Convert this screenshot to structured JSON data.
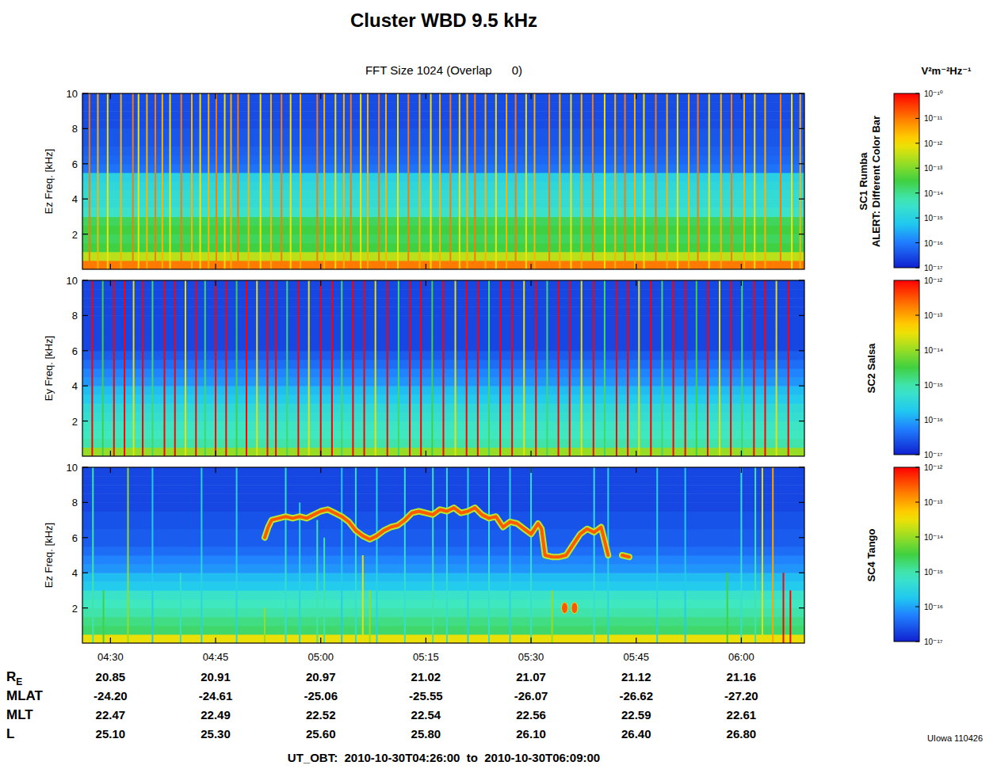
{
  "title": "Cluster WBD 9.5 kHz",
  "subtitle": "FFT Size 1024 (Overlap      0)",
  "colorbar_unit": "V²m⁻²Hz⁻¹",
  "chart_data": [
    {
      "type": "heatmap",
      "name": "SC1 Rumba",
      "alert": "ALERT: Different Color Bar",
      "ylabel": "Ez Freq. [kHz]",
      "xlim": [
        266,
        369
      ],
      "xticks": [
        {
          "value": 270,
          "label": "04:30"
        },
        {
          "value": 285,
          "label": "04:45"
        },
        {
          "value": 300,
          "label": "05:00"
        },
        {
          "value": 315,
          "label": "05:15"
        },
        {
          "value": 330,
          "label": "05:30"
        },
        {
          "value": 345,
          "label": "05:45"
        },
        {
          "value": 360,
          "label": "06:00"
        }
      ],
      "ylim": [
        0,
        10
      ],
      "yticks": [
        2,
        4,
        6,
        8,
        10
      ],
      "tick_labels": "y",
      "log": true,
      "colorbar": {
        "range": [
          1e-17,
          1e-10
        ],
        "ticks": [
          {
            "value": 1e-10,
            "label": "10⁻¹⁰"
          },
          {
            "value": 1e-11,
            "label": "10⁻¹¹"
          },
          {
            "value": 1e-12,
            "label": "10⁻¹²"
          },
          {
            "value": 1e-13,
            "label": "10⁻¹³"
          },
          {
            "value": 1e-14,
            "label": "10⁻¹⁴"
          },
          {
            "value": 1e-15,
            "label": "10⁻¹⁵"
          },
          {
            "value": 1e-16,
            "label": "10⁻¹⁶"
          },
          {
            "value": 1e-17,
            "label": "10⁻¹⁷"
          }
        ]
      },
      "background": {
        "y_bins": [
          0,
          0.5,
          1,
          1.5,
          2,
          2.5,
          3,
          3.5,
          4,
          4.5,
          5,
          5.5,
          6,
          6.5,
          7,
          7.5,
          8,
          8.5,
          9,
          9.5,
          10
        ],
        "values": [
          1e-11,
          3e-13,
          3e-14,
          2e-14,
          3e-14,
          2e-14,
          3e-15,
          2e-15,
          2e-15,
          1.5e-15,
          1e-15,
          8e-17,
          6e-17,
          5e-17,
          4e-17,
          4e-17,
          3e-17,
          3e-17,
          3e-17,
          3e-17
        ]
      },
      "spikes": {
        "x": [
          267.0,
          268.2,
          269.6,
          271.5,
          273.2,
          274.0,
          275.2,
          276.4,
          277.4,
          278.5,
          280.1,
          281.6,
          282.8,
          284.0,
          285.1,
          286.3,
          287.2,
          288.2,
          289.7,
          291.4,
          292.9,
          294.4,
          295.7,
          297.1,
          299.5,
          300.5,
          302.1,
          303.3,
          304.3,
          305.7,
          306.7,
          308.3,
          309.3,
          311.0,
          312.5,
          314.1,
          315.7,
          317.0,
          318.5,
          319.8,
          320.9,
          322.0,
          323.5,
          325.0,
          326.5,
          327.8,
          329.3,
          330.5,
          332.6,
          334.1,
          335.7,
          337.2,
          338.8,
          340.5,
          342.0,
          343.4,
          344.8,
          346.1,
          347.8,
          349.4,
          350.9,
          352.5,
          353.8,
          355.4,
          357.1,
          358.6,
          360.4,
          361.9,
          363.4,
          365.6,
          367.2,
          368.4
        ],
        "values": [
          1e-11,
          3e-12,
          1e-12,
          3e-12,
          1e-11,
          1e-12,
          3e-12,
          1e-11,
          3e-12,
          1e-12,
          1e-11,
          3e-12,
          1e-12,
          3e-12,
          1e-11,
          1e-12,
          3e-12,
          1e-11,
          3e-12,
          1e-12,
          3e-12,
          1e-11,
          1e-12,
          3e-12,
          1e-11,
          3e-12,
          1e-12,
          3e-12,
          1e-11,
          1e-12,
          3e-12,
          1e-11,
          3e-12,
          1e-12,
          1e-11,
          3e-12,
          1e-12,
          3e-12,
          1e-11,
          1e-12,
          3e-12,
          1e-11,
          3e-12,
          1e-12,
          3e-12,
          1e-11,
          1e-12,
          3e-12,
          1e-11,
          3e-12,
          1e-12,
          3e-12,
          1e-11,
          1e-12,
          3e-12,
          1e-11,
          3e-12,
          1e-12,
          1e-11,
          3e-12,
          1e-12,
          3e-12,
          1e-11,
          1e-12,
          3e-12,
          1e-11,
          3e-12,
          1e-12,
          3e-12,
          1e-11,
          1e-12,
          3e-12
        ]
      }
    },
    {
      "type": "heatmap",
      "name": "SC2 Salsa",
      "ylabel": "Ey Freq. [kHz]",
      "xlim": [
        266,
        369
      ],
      "xticks": [
        {
          "value": 270,
          "label": "04:30"
        },
        {
          "value": 285,
          "label": "04:45"
        },
        {
          "value": 300,
          "label": "05:00"
        },
        {
          "value": 315,
          "label": "05:15"
        },
        {
          "value": 330,
          "label": "05:30"
        },
        {
          "value": 345,
          "label": "05:45"
        },
        {
          "value": 360,
          "label": "06:00"
        }
      ],
      "ylim": [
        0,
        10
      ],
      "yticks": [
        2,
        4,
        6,
        8,
        10
      ],
      "tick_labels": "y",
      "log": true,
      "colorbar": {
        "range": [
          1e-17,
          1e-12
        ],
        "ticks": [
          {
            "value": 1e-12,
            "label": "10⁻¹²"
          },
          {
            "value": 1e-13,
            "label": "10⁻¹³"
          },
          {
            "value": 1e-14,
            "label": "10⁻¹⁴"
          },
          {
            "value": 1e-15,
            "label": "10⁻¹⁵"
          },
          {
            "value": 1e-16,
            "label": "10⁻¹⁶"
          },
          {
            "value": 1e-17,
            "label": "10⁻¹⁷"
          }
        ]
      },
      "background": {
        "y_bins": [
          0,
          0.5,
          1,
          1.5,
          2,
          2.5,
          3,
          3.5,
          4,
          4.5,
          5,
          5.5,
          6,
          6.5,
          7,
          7.5,
          8,
          8.5,
          9,
          9.5,
          10
        ],
        "values": [
          1e-14,
          1e-15,
          8e-16,
          7e-16,
          5e-16,
          4e-16,
          2e-16,
          1.5e-16,
          8e-17,
          6e-17,
          4e-17,
          3e-17,
          2e-17,
          2e-17,
          2e-17,
          2e-17,
          2e-17,
          2e-17,
          2e-17,
          2e-17
        ]
      },
      "spikes": {
        "x": [
          267.4,
          268.9,
          270.5,
          272.0,
          273.3,
          274.6,
          276.0,
          277.7,
          279.2,
          280.7,
          282.2,
          283.5,
          285.0,
          286.5,
          288.0,
          289.4,
          290.9,
          292.4,
          293.6,
          295.2,
          296.8,
          298.3,
          300.0,
          301.6,
          303.0,
          304.6,
          306.2,
          307.8,
          309.5,
          311.1,
          312.7,
          314.3,
          315.9,
          317.5,
          319.2,
          320.8,
          322.4,
          324.0,
          325.6,
          327.3,
          329.0,
          330.7,
          332.3,
          333.9,
          335.5,
          337.2,
          338.9,
          340.5,
          342.2,
          343.8,
          345.4,
          347.1,
          348.7,
          350.3,
          352.0,
          353.6,
          355.2,
          356.9,
          358.5,
          360.1,
          361.8,
          363.4,
          365.0,
          366.7
        ],
        "values": [
          1e-12,
          3e-15,
          1e-12,
          1e-12,
          3e-14,
          1e-12,
          2e-15,
          1e-12,
          1e-12,
          3e-14,
          1e-12,
          2e-15,
          1e-12,
          1e-12,
          3e-15,
          1e-12,
          3e-14,
          1e-12,
          1e-12,
          2e-15,
          1e-12,
          3e-14,
          1e-12,
          1e-12,
          2e-15,
          1e-12,
          1e-12,
          3e-14,
          1e-12,
          2e-15,
          1e-12,
          1e-12,
          3e-15,
          1e-12,
          3e-14,
          1e-12,
          1e-12,
          2e-15,
          1e-12,
          1e-12,
          3e-14,
          1e-12,
          2e-15,
          1e-12,
          1e-12,
          3e-14,
          1e-12,
          2e-15,
          1e-12,
          1e-12,
          3e-14,
          1e-12,
          2e-15,
          1e-12,
          1e-12,
          3e-15,
          1e-12,
          3e-14,
          1e-12,
          2e-15,
          1e-12,
          1e-12,
          3e-14,
          1e-12
        ]
      }
    },
    {
      "type": "heatmap",
      "name": "SC4 Tango",
      "ylabel": "Ez Freq. [kHz]",
      "xlim": [
        266,
        369
      ],
      "xticks": [
        {
          "value": 270,
          "label": "04:30"
        },
        {
          "value": 285,
          "label": "04:45"
        },
        {
          "value": 300,
          "label": "05:00"
        },
        {
          "value": 315,
          "label": "05:15"
        },
        {
          "value": 330,
          "label": "05:30"
        },
        {
          "value": 345,
          "label": "05:45"
        },
        {
          "value": 360,
          "label": "06:00"
        }
      ],
      "ylim": [
        0,
        10
      ],
      "yticks": [
        2,
        4,
        6,
        8,
        10
      ],
      "log": true,
      "colorbar": {
        "range": [
          1e-17,
          1e-12
        ],
        "ticks": [
          {
            "value": 1e-12,
            "label": "10⁻¹²"
          },
          {
            "value": 1e-13,
            "label": "10⁻¹³"
          },
          {
            "value": 1e-14,
            "label": "10⁻¹⁴"
          },
          {
            "value": 1e-15,
            "label": "10⁻¹⁵"
          },
          {
            "value": 1e-16,
            "label": "10⁻¹⁶"
          },
          {
            "value": 1e-17,
            "label": "10⁻¹⁷"
          }
        ]
      },
      "background": {
        "y_bins": [
          0,
          0.5,
          1,
          1.5,
          2,
          2.5,
          3,
          3.5,
          4,
          4.5,
          5,
          5.5,
          6,
          6.5,
          7,
          7.5,
          8,
          8.5,
          9,
          9.5,
          10
        ],
        "values": [
          3e-14,
          2e-15,
          1.5e-15,
          1e-15,
          8e-16,
          6e-16,
          2e-16,
          1.5e-16,
          8e-17,
          6e-17,
          4e-17,
          3e-17,
          3e-17,
          2.5e-17,
          2.5e-17,
          2e-17,
          2e-17,
          2e-17,
          2e-17,
          2e-17
        ]
      },
      "spikes": {
        "x": [
          267.5,
          269.0,
          272.5,
          276.0,
          280.0,
          283.0,
          288.0,
          292.0,
          295.0,
          297.0,
          299.5,
          300.5,
          303.0,
          305.0,
          306.0,
          307.0,
          308.0,
          312.0,
          316.0,
          318.0,
          321.0,
          324.0,
          327.0,
          330.0,
          333.0,
          339.0,
          341.0,
          348.0,
          352.0,
          358.0,
          360.0,
          362.0,
          363.0,
          364.5,
          366.0,
          367.0
        ],
        "top": [
          10,
          3,
          10,
          10,
          4,
          10,
          10,
          2,
          10,
          8,
          7,
          6,
          10,
          10,
          5,
          3,
          10,
          10,
          10,
          10,
          10,
          10,
          10,
          10,
          3,
          10,
          10,
          10,
          10,
          4,
          10,
          10,
          10,
          10,
          4,
          3
        ],
        "values": [
          1e-15,
          3e-15,
          1e-14,
          2e-16,
          5e-16,
          3e-16,
          3e-16,
          1e-14,
          5e-16,
          3e-16,
          1e-15,
          1e-15,
          2e-16,
          5e-16,
          3e-14,
          1e-14,
          3e-16,
          5e-16,
          1e-15,
          5e-16,
          3e-16,
          5e-16,
          3e-16,
          5e-16,
          1e-14,
          5e-16,
          3e-16,
          3e-16,
          2e-16,
          3e-15,
          5e-16,
          1e-15,
          3e-14,
          1e-13,
          1e-12,
          1e-12
        ]
      },
      "blobs": {
        "x": [
          334.8,
          336.2
        ],
        "y": [
          2,
          2
        ],
        "values": [
          3e-13,
          3e-13
        ]
      },
      "emission": {
        "color": "#ff5a00",
        "x": [
          292,
          292.5,
          293,
          294,
          295,
          296,
          297,
          298,
          299,
          300,
          301,
          302,
          303,
          304,
          305,
          306,
          307,
          308,
          309,
          310,
          311,
          312,
          313,
          314,
          315,
          316,
          317,
          318,
          319,
          320,
          321,
          322,
          323,
          324,
          325,
          326,
          327,
          328,
          329,
          330,
          331,
          331.5,
          332,
          333,
          334,
          335,
          336,
          337,
          338,
          339,
          340,
          341,
          342,
          343,
          344
        ],
        "values": [
          6.0,
          6.6,
          7.0,
          7.1,
          7.2,
          7.1,
          7.2,
          7.1,
          7.3,
          7.5,
          7.6,
          7.4,
          7.2,
          6.9,
          6.4,
          6.1,
          5.9,
          6.1,
          6.4,
          6.6,
          6.7,
          7.0,
          7.4,
          7.5,
          7.4,
          7.3,
          7.6,
          7.5,
          7.7,
          7.4,
          7.5,
          7.7,
          7.3,
          7.1,
          7.2,
          6.6,
          6.9,
          6.8,
          6.5,
          6.2,
          6.8,
          6.5,
          5.0,
          4.9,
          4.9,
          5.0,
          5.6,
          6.2,
          6.5,
          6.3,
          6.6,
          5.0,
          null,
          5.0,
          4.9
        ]
      }
    }
  ],
  "orbit": {
    "rows": [
      {
        "label": "R",
        "label_sub": "E",
        "values": [
          "20.85",
          "20.91",
          "20.97",
          "21.02",
          "21.07",
          "21.12",
          "21.16"
        ]
      },
      {
        "label": "MLAT",
        "values": [
          "-24.20",
          "-24.61",
          "-25.06",
          "-25.55",
          "-26.07",
          "-26.62",
          "-27.20"
        ]
      },
      {
        "label": "MLT",
        "values": [
          "22.47",
          "22.49",
          "22.52",
          "22.54",
          "22.56",
          "22.59",
          "22.61"
        ]
      },
      {
        "label": "L",
        "values": [
          "25.10",
          "25.30",
          "25.60",
          "25.80",
          "26.10",
          "26.40",
          "26.80"
        ]
      }
    ]
  },
  "footer": "UT_OBT:  2010-10-30T04:26:00  to  2010-10-30T06:09:00",
  "credit": "UIowa 110426"
}
